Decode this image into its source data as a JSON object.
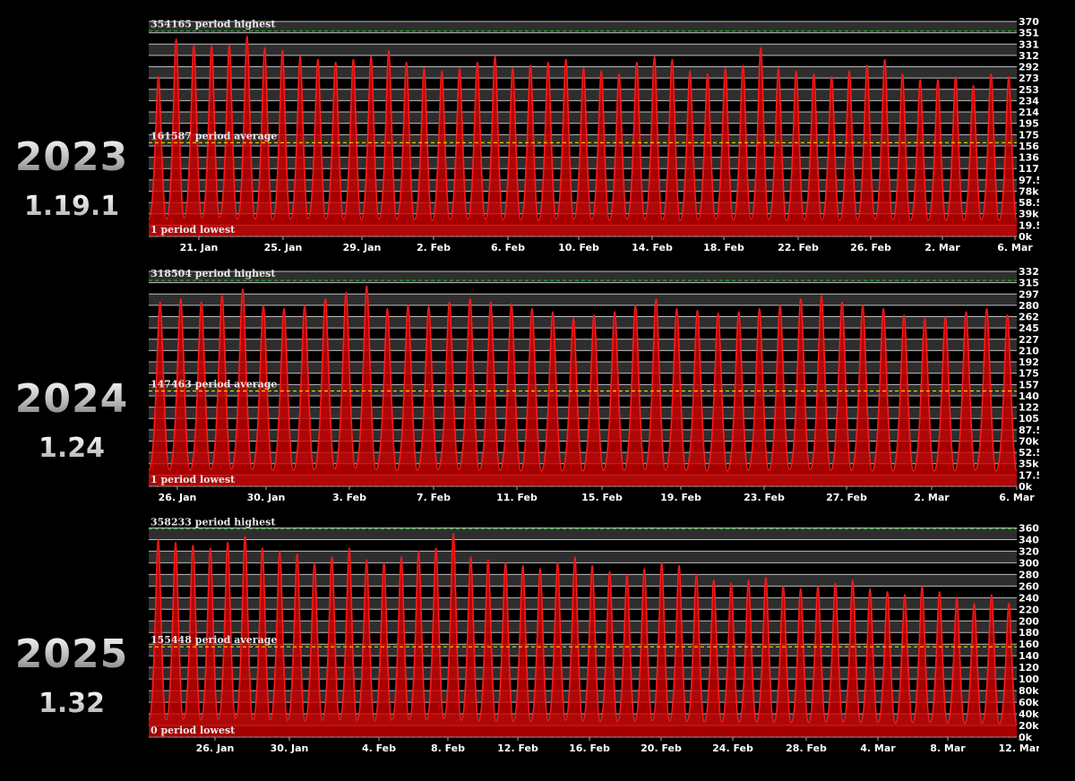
{
  "panels": [
    {
      "year": "2023",
      "version": "1.19.1"
    },
    {
      "year": "2024",
      "version": "1.24"
    },
    {
      "year": "2025",
      "version": "1.32"
    }
  ],
  "colors": {
    "background": "#000000",
    "area": "#cc0000",
    "line": "#ff1a1a",
    "highest": "#22aa22",
    "average": "#e0e000",
    "lowest": "#ff4444"
  },
  "chart_data": [
    {
      "type": "area",
      "ylim": [
        0,
        370500
      ],
      "yticks": [
        "370.5k",
        "351k",
        "331.5k",
        "312k",
        "292.5k",
        "273k",
        "253.5k",
        "234k",
        "214.5k",
        "195k",
        "175.5k",
        "156k",
        "136.5k",
        "117k",
        "97.5k",
        "78k",
        "58.5k",
        "39k",
        "19.5k",
        "0k"
      ],
      "xtick_labels": [
        "21. Jan",
        "25. Jan",
        "29. Jan",
        "2. Feb",
        "6. Feb",
        "10. Feb",
        "14. Feb",
        "18. Feb",
        "22. Feb",
        "26. Feb",
        "2. Mar",
        "6. Mar"
      ],
      "x_range": [
        "18. Jan",
        "7. Mar"
      ],
      "highest": 354165,
      "highest_label": "354165 period highest",
      "average": 161587,
      "average_label": "161587 period average",
      "lowest": 1,
      "lowest_label": "1 period lowest",
      "daily_peaks": [
        275000,
        340000,
        330000,
        328000,
        330000,
        345000,
        325000,
        320000,
        310000,
        305000,
        300000,
        305000,
        310000,
        320000,
        300000,
        290000,
        285000,
        290000,
        300000,
        310000,
        290000,
        295000,
        300000,
        305000,
        290000,
        285000,
        280000,
        300000,
        310000,
        305000,
        285000,
        280000,
        290000,
        295000,
        325000,
        290000,
        285000,
        280000,
        275000,
        285000,
        295000,
        305000,
        280000,
        270000,
        270000,
        275000,
        260000,
        280000,
        275000
      ],
      "daily_troughs": [
        30000,
        30000,
        32000,
        32000,
        33000,
        30000,
        30000,
        29000,
        30000,
        31000,
        30000,
        30000,
        29000,
        30000,
        30000,
        29000,
        28000,
        29000,
        30000,
        30000,
        29000,
        29000,
        28000,
        30000,
        30000,
        29000,
        28000,
        30000,
        30000,
        29000,
        28000,
        29000,
        30000,
        29000,
        30000,
        29000,
        28000,
        29000,
        29000,
        28000,
        29000,
        30000,
        29000,
        28000,
        28000,
        28000,
        28000,
        29000,
        28000
      ]
    },
    {
      "type": "area",
      "ylim": [
        0,
        332500
      ],
      "yticks": [
        "332.5k",
        "315k",
        "297.5k",
        "280k",
        "262.5k",
        "245k",
        "227.5k",
        "210k",
        "192.5k",
        "175k",
        "157.5k",
        "140k",
        "122.5k",
        "105k",
        "87.5k",
        "70k",
        "52.5k",
        "35k",
        "17.5k",
        "0k"
      ],
      "xtick_labels": [
        "26. Jan",
        "30. Jan",
        "3. Feb",
        "7. Feb",
        "11. Feb",
        "15. Feb",
        "19. Feb",
        "23. Feb",
        "27. Feb",
        "2. Mar",
        "6. Mar"
      ],
      "x_range": [
        "23. Jan",
        "7. Mar"
      ],
      "highest": 318504,
      "highest_label": "318504 period highest",
      "average": 147463,
      "average_label": "147463 period average",
      "lowest": 1,
      "lowest_label": "1 period lowest",
      "daily_peaks": [
        285000,
        290000,
        285000,
        295000,
        305000,
        280000,
        275000,
        280000,
        290000,
        300000,
        310000,
        275000,
        280000,
        278000,
        285000,
        290000,
        285000,
        282000,
        275000,
        270000,
        260000,
        265000,
        270000,
        280000,
        290000,
        275000,
        272000,
        268000,
        270000,
        275000,
        280000,
        290000,
        295000,
        285000,
        280000,
        275000,
        265000,
        260000,
        262000,
        270000,
        275000,
        265000
      ],
      "daily_troughs": [
        25000,
        26000,
        25000,
        26000,
        27000,
        26000,
        25000,
        25000,
        26000,
        27000,
        28000,
        26000,
        25000,
        25000,
        26000,
        26000,
        25000,
        25000,
        24000,
        24000,
        24000,
        24000,
        25000,
        25000,
        26000,
        25000,
        25000,
        24000,
        24000,
        25000,
        25000,
        26000,
        26000,
        25000,
        25000,
        24000,
        24000,
        24000,
        24000,
        24000,
        25000,
        24000
      ]
    },
    {
      "type": "area",
      "ylim": [
        0,
        370000
      ],
      "yticks": [
        "360k",
        "340k",
        "320k",
        "300k",
        "280k",
        "260k",
        "240k",
        "220k",
        "200k",
        "180k",
        "160k",
        "140k",
        "120k",
        "100k",
        "80k",
        "60k",
        "40k",
        "20k",
        "0k"
      ],
      "xtick_labels": [
        "26. Jan",
        "30. Jan",
        "4. Feb",
        "8. Feb",
        "12. Feb",
        "16. Feb",
        "20. Feb",
        "24. Feb",
        "28. Feb",
        "4. Mar",
        "8. Mar",
        "12. Mar"
      ],
      "x_range": [
        "23. Jan",
        "13. Mar"
      ],
      "highest": 358233,
      "highest_label": "358233 period highest",
      "average": 155448,
      "average_label": "155448 period average",
      "lowest": 0,
      "lowest_label": "0 period lowest",
      "daily_peaks": [
        340000,
        335000,
        330000,
        325000,
        335000,
        345000,
        325000,
        320000,
        315000,
        300000,
        310000,
        325000,
        305000,
        300000,
        310000,
        320000,
        325000,
        350000,
        310000,
        305000,
        300000,
        295000,
        290000,
        300000,
        310000,
        295000,
        285000,
        280000,
        290000,
        300000,
        295000,
        280000,
        270000,
        265000,
        270000,
        275000,
        260000,
        255000,
        260000,
        265000,
        270000,
        255000,
        250000,
        245000,
        260000,
        250000,
        240000,
        230000,
        245000,
        230000
      ],
      "daily_troughs": [
        30000,
        30000,
        31000,
        30000,
        31000,
        32000,
        30000,
        30000,
        29000,
        28000,
        29000,
        30000,
        29000,
        28000,
        29000,
        30000,
        30000,
        32000,
        29000,
        28000,
        28000,
        27000,
        27000,
        28000,
        29000,
        28000,
        27000,
        27000,
        28000,
        28000,
        28000,
        27000,
        26000,
        26000,
        26000,
        26000,
        25000,
        25000,
        25000,
        26000,
        26000,
        25000,
        25000,
        24000,
        25000,
        25000,
        24000,
        23000,
        24000,
        23000
      ]
    }
  ]
}
